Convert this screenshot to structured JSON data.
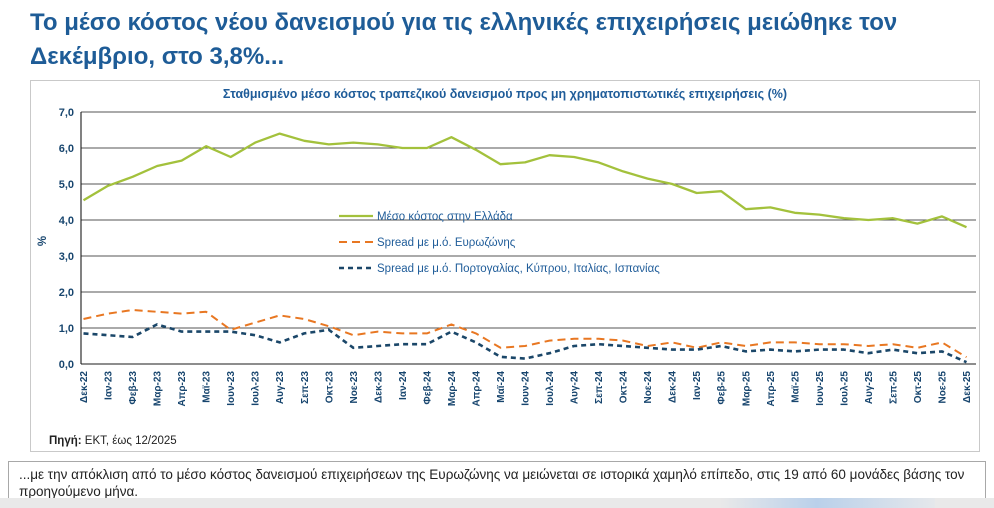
{
  "page": {
    "title": "Το μέσο κόστος νέου δανεισμού για τις ελληνικές επιχειρήσεις μειώθηκε τον Δεκέμβριο, στο 3,8%...",
    "source_label": "Πηγή:",
    "source_text": " ΕΚΤ, έως 12/2025",
    "footer_note": "...με την απόκλιση από το μέσο κόστος δανεισμού επιχειρήσεων της Ευρωζώνης να μειώνεται σε ιστορικά χαμηλό επίπεδο, στις 19 από 60 μονάδες βάσης τον προηγούμενο μήνα."
  },
  "colors": {
    "title_blue": "#1E5C97",
    "axis_label_blue": "#17456E",
    "gridline": "#1b1b1b",
    "greece_line": "#A3C13C",
    "eurozone_line": "#E87722",
    "south_line": "#1B4769",
    "panel_border": "#c9c9c9"
  },
  "chart_data": {
    "type": "line",
    "title": "Σταθμισμένο μέσο κόστος τραπεζικού δανεισμού προς μη χρηματοπιστωτικές επιχειρήσεις (%)",
    "xlabel": "",
    "ylabel": "%",
    "ylim": [
      0,
      7
    ],
    "ytick_step": 1,
    "ytick_labels": [
      "0,0",
      "1,0",
      "2,0",
      "3,0",
      "4,0",
      "5,0",
      "6,0",
      "7,0"
    ],
    "grid": true,
    "legend_position": "inside-center-left",
    "categories": [
      "Δεκ-22",
      "Ιαν-23",
      "Φεβ-23",
      "Μαρ-23",
      "Απρ-23",
      "Μαϊ-23",
      "Ιουν-23",
      "Ιουλ-23",
      "Αυγ-23",
      "Σεπ-23",
      "Οκτ-23",
      "Νοε-23",
      "Δεκ-23",
      "Ιαν-24",
      "Φεβ-24",
      "Μαρ-24",
      "Απρ-24",
      "Μαϊ-24",
      "Ιουν-24",
      "Ιουλ-24",
      "Αυγ-24",
      "Σεπ-24",
      "Οκτ-24",
      "Νοε-24",
      "Δεκ-24",
      "Ιαν-25",
      "Φεβ-25",
      "Μαρ-25",
      "Απρ-25",
      "Μαϊ-25",
      "Ιουν-25",
      "Ιουλ-25",
      "Αυγ-25",
      "Σεπ-25",
      "Οκτ-25",
      "Νοε-25",
      "Δεκ-25"
    ],
    "series": [
      {
        "name": "Μέσο κόστος στην Ελλάδα",
        "color": "#A3C13C",
        "style": "solid",
        "width": 2.3,
        "values": [
          4.55,
          4.95,
          5.2,
          5.5,
          5.65,
          6.05,
          5.75,
          6.15,
          6.4,
          6.2,
          6.1,
          6.15,
          6.1,
          6.0,
          6.0,
          6.3,
          5.95,
          5.55,
          5.6,
          5.8,
          5.75,
          5.6,
          5.35,
          5.15,
          5.0,
          4.75,
          4.8,
          4.3,
          4.35,
          4.2,
          4.15,
          4.05,
          4.0,
          4.05,
          3.9,
          4.1,
          3.8
        ]
      },
      {
        "name": "Spread με μ.ό. Ευρωζώνης",
        "color": "#E87722",
        "style": "dashed",
        "width": 2.0,
        "values": [
          1.25,
          1.4,
          1.5,
          1.45,
          1.4,
          1.45,
          0.95,
          1.15,
          1.35,
          1.25,
          1.05,
          0.8,
          0.9,
          0.85,
          0.85,
          1.1,
          0.85,
          0.45,
          0.5,
          0.65,
          0.7,
          0.7,
          0.65,
          0.5,
          0.6,
          0.45,
          0.6,
          0.5,
          0.6,
          0.6,
          0.55,
          0.55,
          0.5,
          0.55,
          0.45,
          0.6,
          0.19
        ]
      },
      {
        "name": "Spread με μ.ό. Πορτογαλίας, Κύπρου, Ιταλίας, Ισπανίας",
        "color": "#1B4769",
        "style": "dashed",
        "width": 2.6,
        "values": [
          0.85,
          0.8,
          0.75,
          1.1,
          0.9,
          0.9,
          0.9,
          0.8,
          0.6,
          0.85,
          0.95,
          0.45,
          0.5,
          0.55,
          0.55,
          0.9,
          0.6,
          0.2,
          0.15,
          0.3,
          0.5,
          0.55,
          0.5,
          0.45,
          0.4,
          0.4,
          0.5,
          0.35,
          0.4,
          0.35,
          0.4,
          0.4,
          0.3,
          0.4,
          0.3,
          0.35,
          0.05
        ]
      }
    ]
  }
}
